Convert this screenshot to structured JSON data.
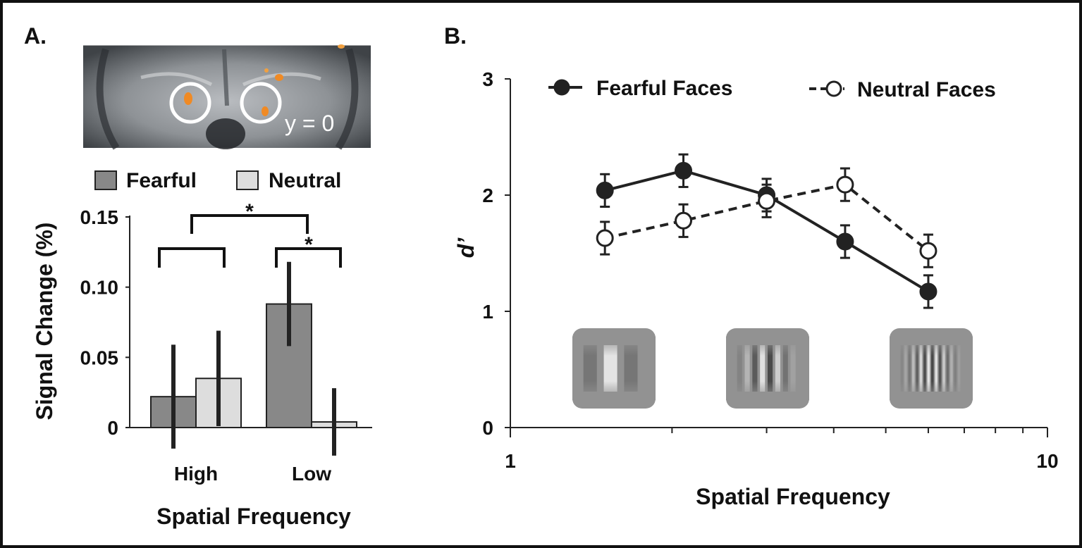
{
  "figure": {
    "panel_a_label": "A.",
    "panel_b_label": "B.",
    "brain_slice_label": "y = 0"
  },
  "chart_data": [
    {
      "type": "bar",
      "panel": "A.",
      "title": "",
      "xlabel": "Spatial Frequency",
      "ylabel": "Signal Change (%)",
      "ylim": [
        0,
        0.15
      ],
      "yticks": [
        0,
        0.05,
        0.1,
        0.15
      ],
      "ytick_labels": [
        "0",
        "0.05",
        "0.10",
        "0.15"
      ],
      "categories": [
        "High",
        "Low"
      ],
      "legend": {
        "placement": "top",
        "entries": [
          "Fearful",
          "Neutral"
        ]
      },
      "series": [
        {
          "name": "Fearful",
          "color": "#888888",
          "values": [
            0.022,
            0.088
          ],
          "error": [
            0.037,
            0.03
          ]
        },
        {
          "name": "Neutral",
          "color": "#dddddd",
          "values": [
            0.035,
            0.004
          ],
          "error": [
            0.034,
            0.024
          ]
        }
      ],
      "significance": [
        "*",
        "*"
      ]
    },
    {
      "type": "line",
      "panel": "B.",
      "title": "",
      "xlabel": "Spatial Frequency",
      "ylabel": "d’",
      "xscale": "log",
      "xlim": [
        1,
        10
      ],
      "ylim": [
        0,
        3
      ],
      "xtick_labels": [
        "1",
        "10"
      ],
      "yticks": [
        0,
        1,
        2,
        3
      ],
      "ytick_labels": [
        "0",
        "1",
        "2",
        "3"
      ],
      "legend": {
        "placement": "top",
        "entries": [
          "Fearful Faces",
          "Neutral Faces"
        ]
      },
      "x": [
        1.5,
        2.1,
        3.0,
        4.2,
        6.0
      ],
      "series": [
        {
          "name": "Fearful Faces",
          "style": "solid",
          "marker": "filled",
          "values": [
            2.04,
            2.21,
            2.0,
            1.6,
            1.17
          ],
          "error": [
            0.14,
            0.14,
            0.14,
            0.14,
            0.14
          ]
        },
        {
          "name": "Neutral Faces",
          "style": "dashed",
          "marker": "open",
          "values": [
            1.63,
            1.78,
            1.95,
            2.09,
            1.52
          ],
          "error": [
            0.14,
            0.14,
            0.14,
            0.14,
            0.14
          ]
        }
      ],
      "stimuli": [
        "low-frequency-grating",
        "mid-frequency-grating",
        "high-frequency-grating"
      ]
    }
  ]
}
